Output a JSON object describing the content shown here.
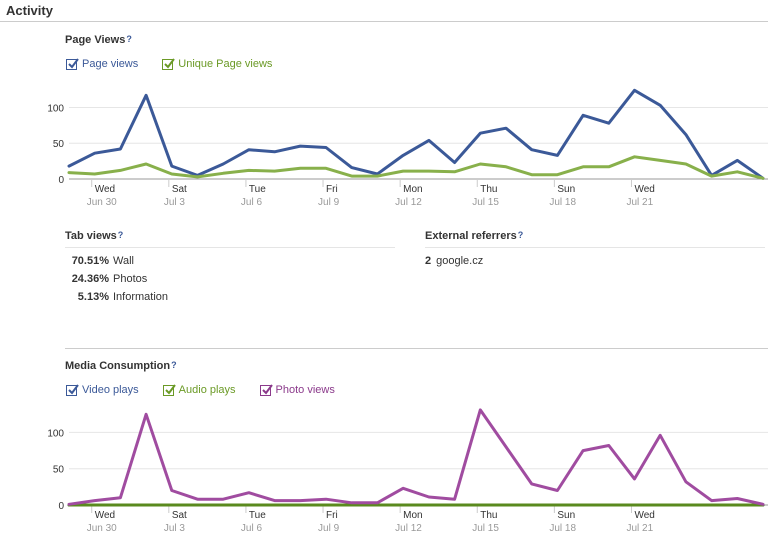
{
  "header": {
    "title": "Activity"
  },
  "page_views": {
    "title": "Page Views",
    "help": "?",
    "legend": [
      {
        "label": "Page views",
        "color": "#3b5998",
        "checked": true
      },
      {
        "label": "Unique Page views",
        "color": "#6b9a26",
        "checked": true
      }
    ]
  },
  "tab_views": {
    "title": "Tab views",
    "help": "?",
    "rows": [
      {
        "pct": "70.51%",
        "label": "Wall"
      },
      {
        "pct": "24.36%",
        "label": "Photos"
      },
      {
        "pct": "5.13%",
        "label": "Information"
      }
    ]
  },
  "external_referrers": {
    "title": "External referrers",
    "help": "?",
    "rows": [
      {
        "count": "2",
        "label": "google.cz"
      }
    ]
  },
  "media": {
    "title": "Media Consumption",
    "help": "?",
    "legend": [
      {
        "label": "Video plays",
        "color": "#3b5998",
        "checked": true
      },
      {
        "label": "Audio plays",
        "color": "#6b9a26",
        "checked": true
      },
      {
        "label": "Photo views",
        "color": "#8b3a8b",
        "checked": true
      }
    ]
  },
  "chart_data": [
    {
      "type": "line",
      "ylim": [
        0,
        130
      ],
      "yticks": [
        0,
        50,
        100
      ],
      "tick_labels": [
        {
          "day": "Wed",
          "date": "Jun 30"
        },
        {
          "day": "Sat",
          "date": "Jul 3"
        },
        {
          "day": "Tue",
          "date": "Jul 6"
        },
        {
          "day": "Fri",
          "date": "Jul 9"
        },
        {
          "day": "Mon",
          "date": "Jul 12"
        },
        {
          "day": "Thu",
          "date": "Jul 15"
        },
        {
          "day": "Sun",
          "date": "Jul 18"
        },
        {
          "day": "Wed",
          "date": "Jul 21"
        }
      ],
      "series": [
        {
          "color": "#3b5998",
          "values": [
            18,
            36,
            42,
            117,
            18,
            5,
            21,
            41,
            38,
            46,
            44,
            16,
            7,
            33,
            54,
            23,
            64,
            71,
            41,
            33,
            89,
            78,
            124,
            103,
            62,
            5,
            26,
            1
          ]
        },
        {
          "color": "#88b04b",
          "values": [
            9,
            7,
            12,
            21,
            7,
            3,
            8,
            12,
            11,
            15,
            15,
            4,
            4,
            11,
            11,
            10,
            21,
            17,
            6,
            6,
            17,
            17,
            31,
            26,
            21,
            4,
            10,
            1
          ]
        }
      ]
    },
    {
      "type": "line",
      "ylim": [
        0,
        135
      ],
      "yticks": [
        0,
        50,
        100
      ],
      "tick_labels": [
        {
          "day": "Wed",
          "date": "Jun 30"
        },
        {
          "day": "Sat",
          "date": "Jul 3"
        },
        {
          "day": "Tue",
          "date": "Jul 6"
        },
        {
          "day": "Fri",
          "date": "Jul 9"
        },
        {
          "day": "Mon",
          "date": "Jul 12"
        },
        {
          "day": "Thu",
          "date": "Jul 15"
        },
        {
          "day": "Sun",
          "date": "Jul 18"
        },
        {
          "day": "Wed",
          "date": "Jul 21"
        }
      ],
      "series": [
        {
          "color": "#3b5998",
          "values": [
            0,
            0,
            0,
            0,
            0,
            0,
            0,
            0,
            0,
            0,
            0,
            0,
            0,
            0,
            0,
            0,
            0,
            0,
            0,
            0,
            0,
            0,
            0,
            0,
            0,
            0,
            0,
            0
          ]
        },
        {
          "color": "#5a8a1e",
          "values": [
            0,
            0,
            0,
            0,
            0,
            0,
            0,
            0,
            0,
            0,
            0,
            0,
            0,
            0,
            0,
            0,
            0,
            0,
            0,
            0,
            0,
            0,
            0,
            0,
            0,
            0,
            0,
            0
          ]
        },
        {
          "color": "#a04ca0",
          "values": [
            1,
            6,
            10,
            125,
            20,
            8,
            8,
            17,
            6,
            6,
            8,
            3,
            3,
            23,
            11,
            8,
            131,
            80,
            29,
            20,
            75,
            82,
            36,
            96,
            32,
            6,
            9,
            1
          ]
        }
      ]
    }
  ]
}
